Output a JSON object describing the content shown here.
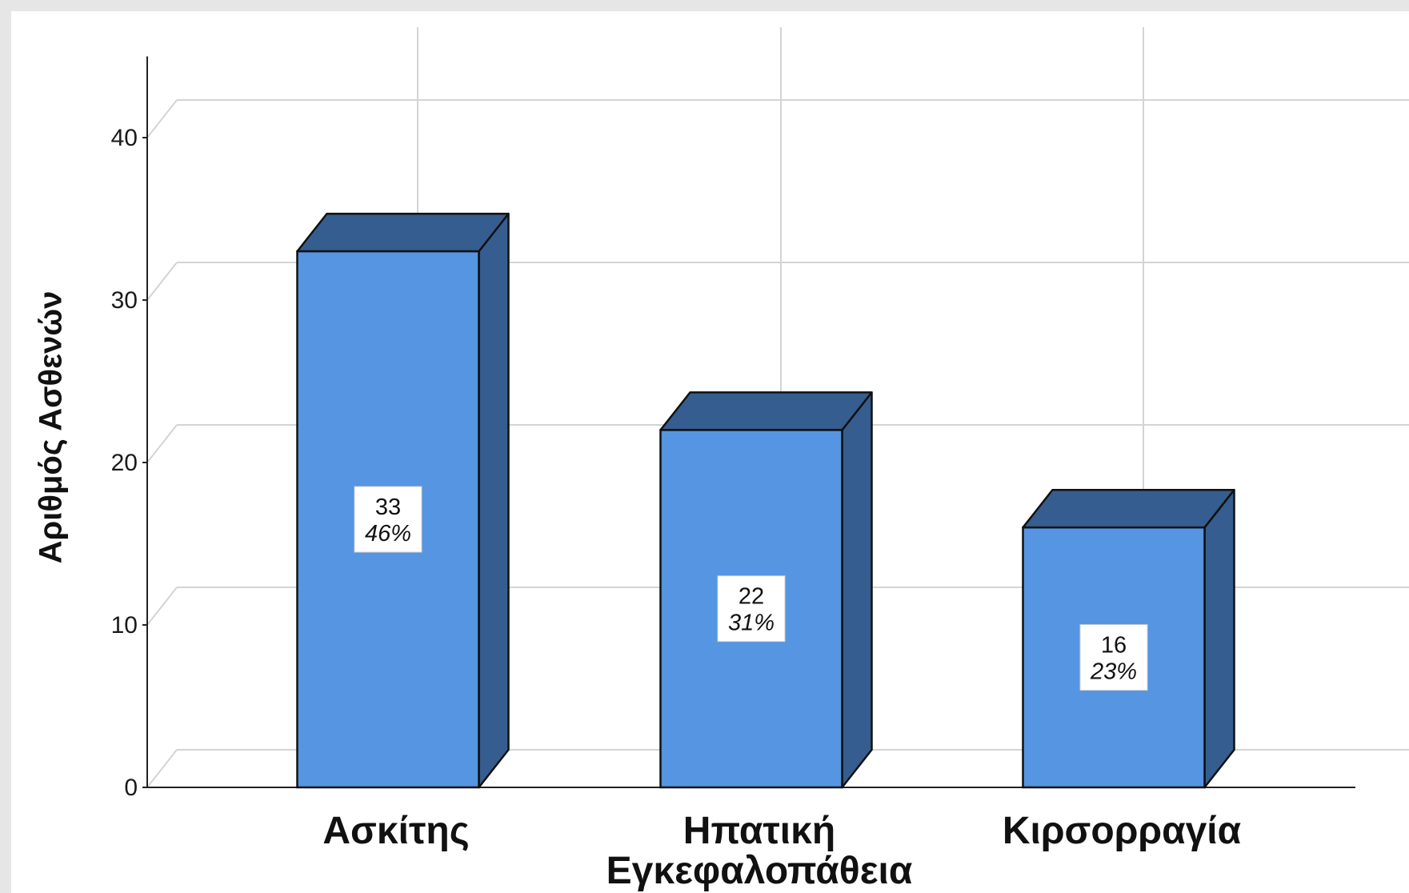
{
  "chart_data": {
    "type": "bar",
    "style": "3d",
    "categories": [
      "Ασκίτης",
      "Ηπατική\nΕγκεφαλοπάθεια",
      "Κιρσορραγία"
    ],
    "values": [
      33,
      22,
      16
    ],
    "percent_labels": [
      "46%",
      "31%",
      "23%"
    ],
    "ylabel": "Αριθμός Ασθενών",
    "xlabel": "",
    "yticks": [
      0,
      10,
      20,
      30,
      40
    ],
    "ylim": [
      0,
      45
    ],
    "grid": true,
    "colors": {
      "front": "#5595e2",
      "side": "#355d8f",
      "top": "#355d8f",
      "outline": "#111111",
      "grid": "#d4d4d4",
      "background": "#ffffff"
    }
  }
}
